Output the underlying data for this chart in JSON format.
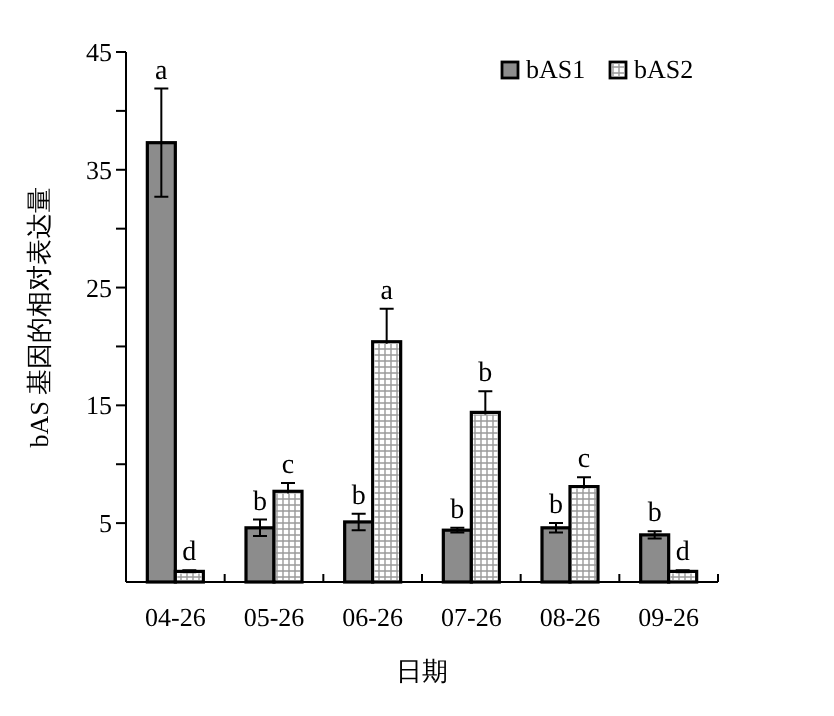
{
  "chart_data": {
    "type": "bar",
    "xlabel": "日期",
    "ylabel": "bAS 基因的相对表达量",
    "categories": [
      "04-26",
      "05-26",
      "06-26",
      "07-26",
      "08-26",
      "09-26"
    ],
    "series": [
      {
        "name": "bAS1",
        "color": "#8c8c8c",
        "values": [
          37.3,
          4.6,
          5.1,
          4.4,
          4.6,
          4.0
        ],
        "errors": [
          4.6,
          0.7,
          0.7,
          0.2,
          0.4,
          0.3
        ]
      },
      {
        "name": "bAS2",
        "color": "#ffffff",
        "values": [
          0.9,
          7.7,
          20.4,
          14.4,
          8.1,
          0.9
        ],
        "errors": [
          0.1,
          0.7,
          2.8,
          1.8,
          0.8,
          0.1
        ]
      }
    ],
    "ylim": [
      0,
      45
    ],
    "yticks": [
      5,
      {
        "value": 10,
        "label": null
      },
      15,
      {
        "value": 20,
        "label": null
      },
      25,
      {
        "value": 30,
        "label": null
      },
      35,
      {
        "value": 40,
        "label": null
      },
      45
    ],
    "grid": false,
    "legend": "top right",
    "annotations": [
      {
        "text": "a",
        "x": "04-26",
        "y": 41.9
      },
      {
        "text": "d",
        "x": "04-26",
        "y": 1.0
      },
      {
        "text": "b",
        "x": "05-26",
        "y": 5.3
      },
      {
        "text": "c",
        "x": "05-26",
        "y": 8.4
      },
      {
        "text": "b",
        "x": "06-26",
        "y": 5.8
      },
      {
        "text": "a",
        "x": "06-26",
        "y": 23.2
      },
      {
        "text": "b",
        "x": "07-26",
        "y": 4.6
      },
      {
        "text": "b",
        "x": "07-26",
        "y": 16.2
      },
      {
        "text": "b",
        "x": "08-26",
        "y": 5.0
      },
      {
        "text": "c",
        "x": "08-26",
        "y": 8.9
      },
      {
        "text": "b",
        "x": "09-26",
        "y": 4.3
      },
      {
        "text": "d",
        "x": "09-26",
        "y": 1.0
      }
    ]
  }
}
